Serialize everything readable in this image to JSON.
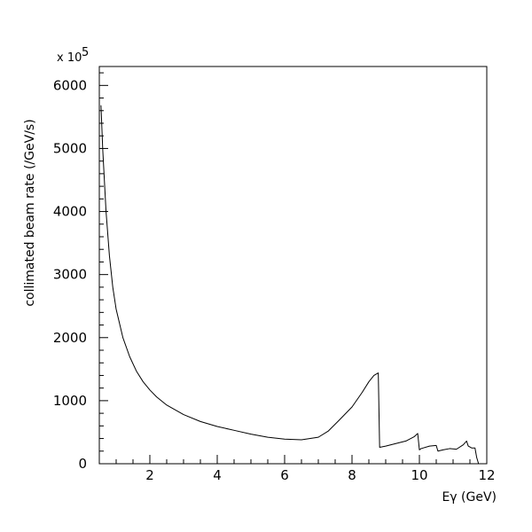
{
  "chart_data": {
    "type": "line",
    "xlabel": "Eγ (GeV)",
    "ylabel": "collimated beam rate (/GeV/s)",
    "y_multiplier_label": "x 10",
    "y_multiplier_exponent": "5",
    "xlim": [
      0.5,
      12
    ],
    "ylim": [
      0,
      6300
    ],
    "x_ticks": [
      2,
      4,
      6,
      8,
      10,
      12
    ],
    "y_ticks": [
      0,
      1000,
      2000,
      3000,
      4000,
      5000,
      6000
    ],
    "x_tick_labels": [
      "2",
      "4",
      "6",
      "8",
      "10",
      "12"
    ],
    "y_tick_labels": [
      "0",
      "1000",
      "2000",
      "3000",
      "4000",
      "5000",
      "6000"
    ],
    "grid": false,
    "legend": "none",
    "series": [
      {
        "x": [
          0.55,
          0.6,
          0.7,
          0.8,
          0.9,
          1.0,
          1.2,
          1.4,
          1.6,
          1.8,
          2.0,
          2.2,
          2.5,
          3.0,
          3.5,
          4.0,
          4.5,
          5.0,
          5.5,
          6.0,
          6.5,
          7.0,
          7.3,
          7.6,
          8.0,
          8.3,
          8.5,
          8.65,
          8.78,
          8.82,
          9.0,
          9.3,
          9.6,
          9.85,
          9.95,
          10.0,
          10.05,
          10.3,
          10.5,
          10.55,
          10.7,
          10.9,
          11.1,
          11.3,
          11.4,
          11.45,
          11.55,
          11.65,
          11.7,
          11.75
        ],
        "y": [
          5680,
          5000,
          4000,
          3300,
          2800,
          2450,
          2000,
          1700,
          1470,
          1300,
          1170,
          1060,
          930,
          780,
          670,
          590,
          530,
          470,
          420,
          390,
          380,
          420,
          520,
          680,
          900,
          1130,
          1300,
          1400,
          1440,
          260,
          280,
          320,
          360,
          430,
          480,
          220,
          240,
          280,
          290,
          200,
          220,
          240,
          230,
          300,
          360,
          280,
          250,
          250,
          100,
          10
        ]
      }
    ]
  }
}
